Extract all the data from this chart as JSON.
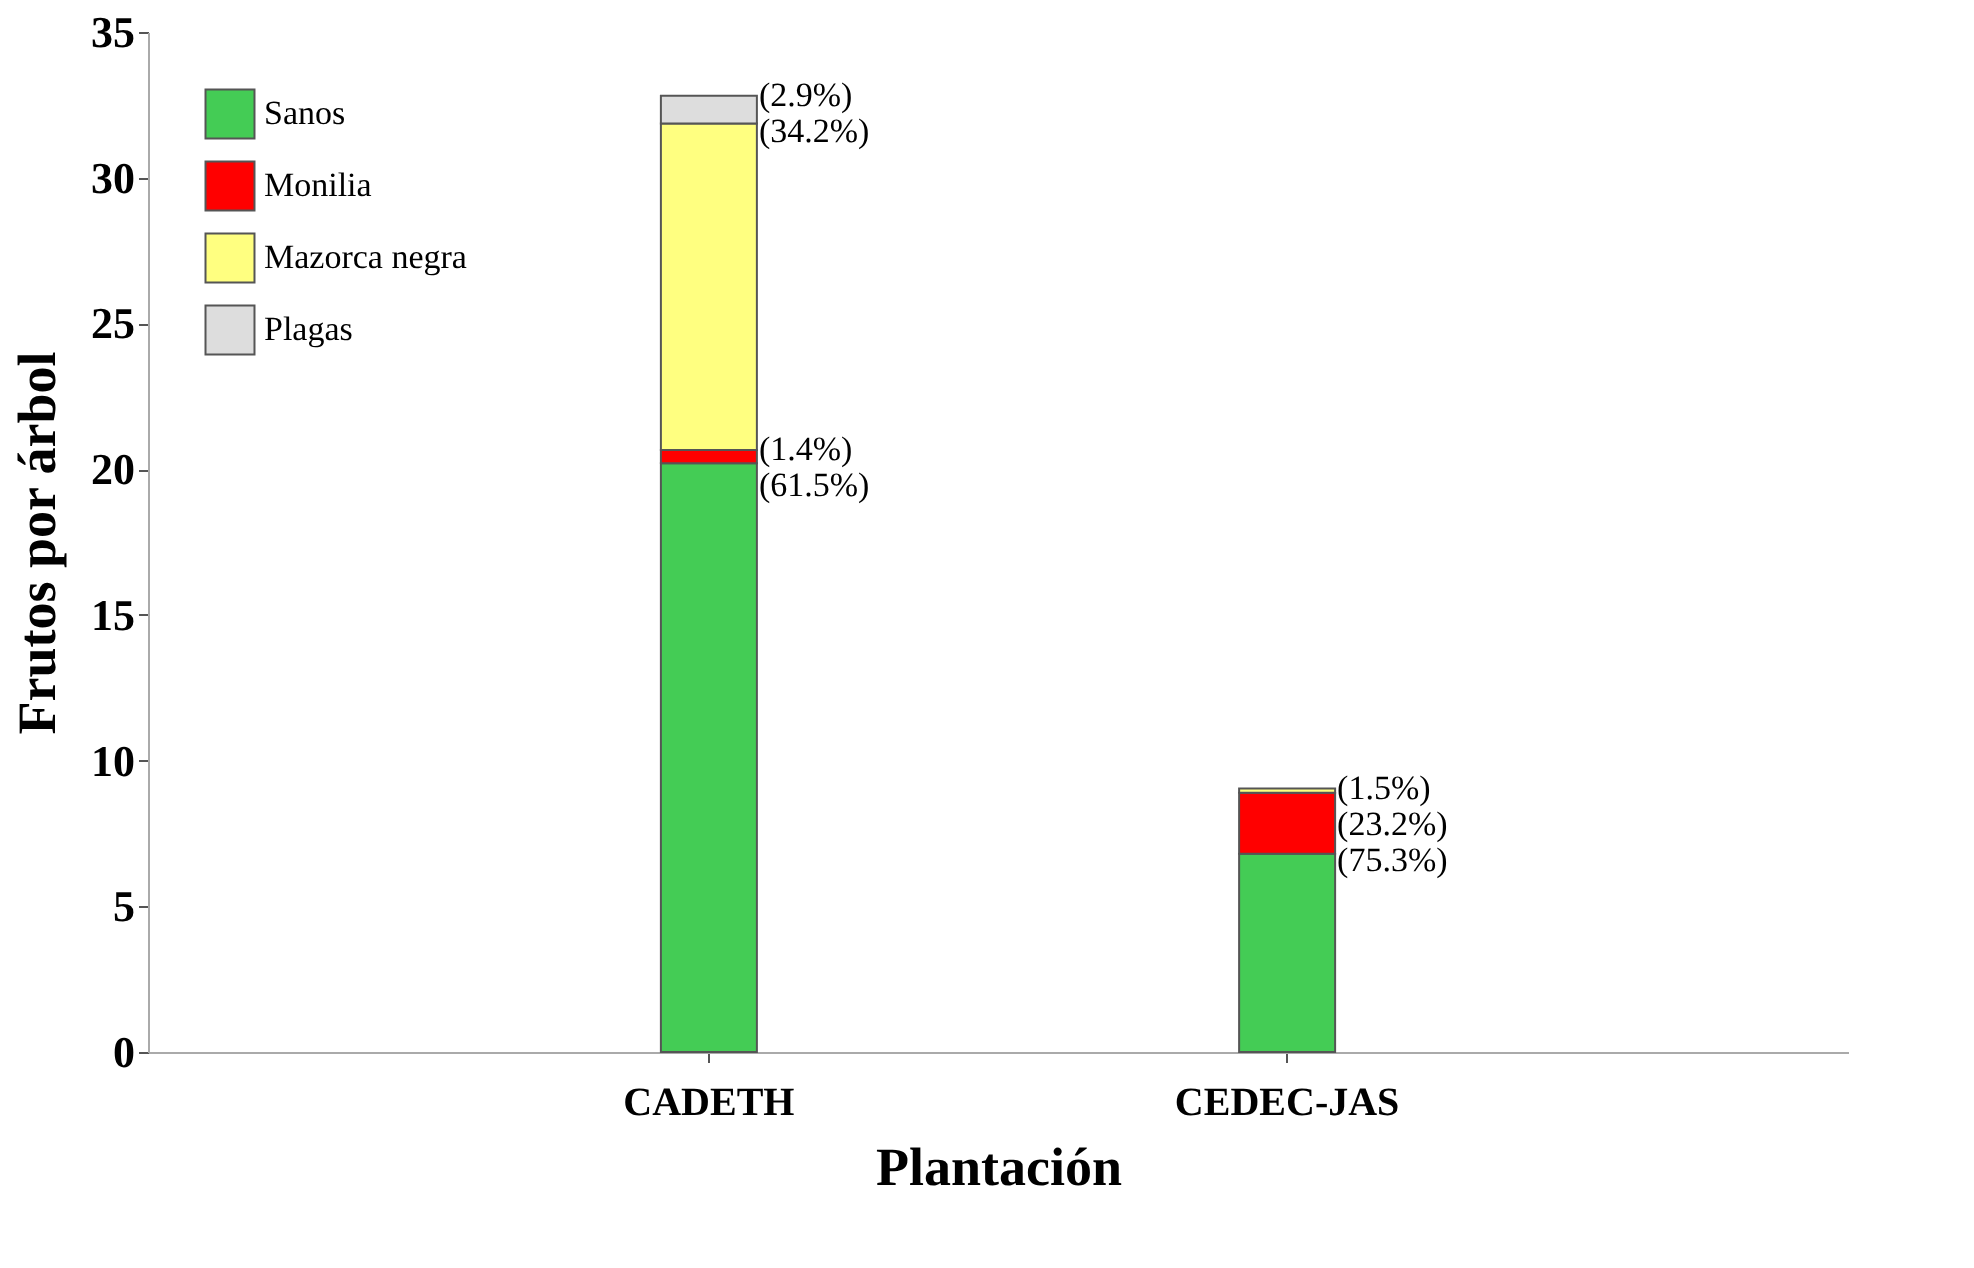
{
  "chart_data": {
    "type": "bar",
    "stacked": true,
    "xlabel": "Plantación",
    "ylabel": "Frutos por árbol",
    "categories": [
      "CADETH",
      "CEDEC-JAS"
    ],
    "series": [
      {
        "name": "Sanos",
        "color": "#44cc55",
        "values": [
          20.2,
          6.8
        ]
      },
      {
        "name": "Monilia",
        "color": "#ff0000",
        "values": [
          0.46,
          2.1
        ]
      },
      {
        "name": "Mazorca negra",
        "color": "#ffff80",
        "values": [
          11.2,
          0.14
        ]
      },
      {
        "name": "Plagas",
        "color": "#dddddd",
        "values": [
          0.95,
          null
        ]
      }
    ],
    "annotations": [
      {
        "text": "(61.5%)",
        "x": "CADETH",
        "y": 20.2
      },
      {
        "text": "(1.4%)",
        "x": "CADETH",
        "y": 20.66
      },
      {
        "text": "(34.2%)",
        "x": "CADETH",
        "y": 31.86
      },
      {
        "text": "(2.9%)",
        "x": "CADETH",
        "y": 32.81
      },
      {
        "text": "(75.3%)",
        "x": "CEDEC-JAS",
        "y": 6.8
      },
      {
        "text": "(23.2%)",
        "x": "CEDEC-JAS",
        "y": 8.9
      },
      {
        "text": "(1.5%)",
        "x": "CEDEC-JAS",
        "y": 9.04
      }
    ],
    "ylim": [
      0,
      35
    ],
    "yticks": [
      0,
      5,
      10,
      15,
      20,
      25,
      30,
      35
    ],
    "grid": false,
    "legend": "top left"
  }
}
